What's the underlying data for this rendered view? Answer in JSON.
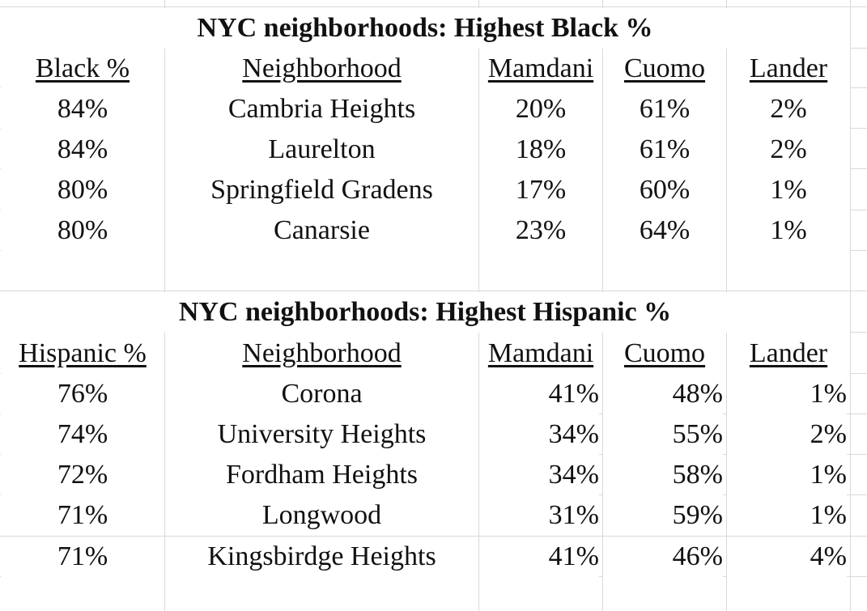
{
  "black_table": {
    "title": "NYC neighborhoods: Highest Black %",
    "headers": [
      "Black %",
      "Neighborhood",
      "Mamdani",
      "Cuomo",
      "Lander"
    ],
    "rows": [
      [
        "84%",
        "Cambria Heights",
        "20%",
        "61%",
        "2%"
      ],
      [
        "84%",
        "Laurelton",
        "18%",
        "61%",
        "2%"
      ],
      [
        "80%",
        "Springfield Gradens",
        "17%",
        "60%",
        "1%"
      ],
      [
        "80%",
        "Canarsie",
        "23%",
        "64%",
        "1%"
      ]
    ]
  },
  "hispanic_table": {
    "title": "NYC neighborhoods: Highest Hispanic %",
    "headers": [
      "Hispanic %",
      "Neighborhood",
      "Mamdani",
      "Cuomo",
      "Lander"
    ],
    "rows": [
      [
        "76%",
        "Corona",
        "41%",
        "48%",
        "1%"
      ],
      [
        "74%",
        "University Heights",
        "34%",
        "55%",
        "2%"
      ],
      [
        "72%",
        "Fordham Heights",
        "34%",
        "58%",
        "1%"
      ],
      [
        "71%",
        "Longwood",
        "31%",
        "59%",
        "1%"
      ],
      [
        "71%",
        "Kingsbirdge Heights",
        "41%",
        "46%",
        "4%"
      ]
    ]
  }
}
